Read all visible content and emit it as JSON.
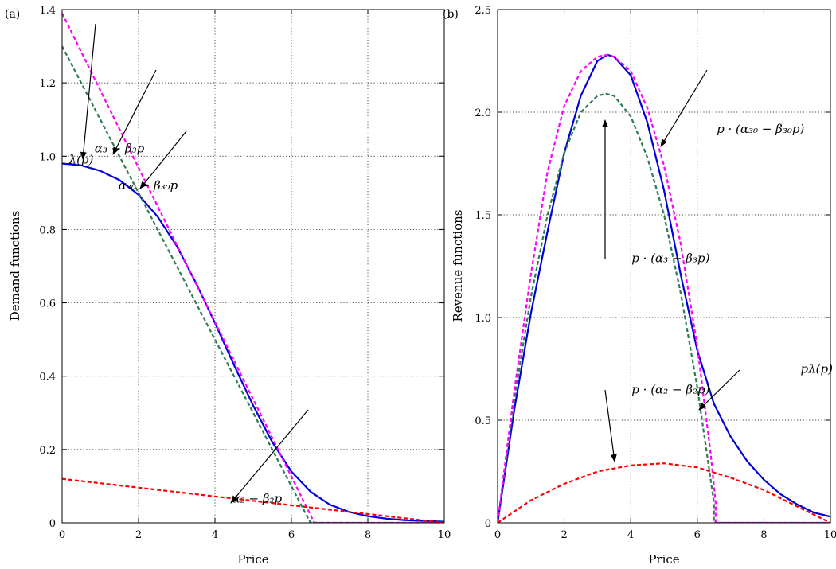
{
  "figure": {
    "panels": [
      {
        "label": "(a)"
      },
      {
        "label": "(b)"
      }
    ]
  },
  "chart_data": [
    {
      "type": "line",
      "panel_label": "(a)",
      "xlabel": "Price",
      "ylabel": "Demand functions",
      "xlim": [
        0,
        10
      ],
      "ylim": [
        0,
        1.4
      ],
      "xticks": [
        0,
        2,
        4,
        6,
        8,
        10
      ],
      "yticks": [
        0,
        0.2,
        0.4,
        0.6,
        0.8,
        1.0,
        1.2,
        1.4
      ],
      "xtick_labels": [
        "0",
        "2",
        "4",
        "6",
        "8",
        "10"
      ],
      "ytick_labels": [
        "0",
        "0.2",
        "0.4",
        "0.6",
        "0.8",
        "1.0",
        "1.2",
        "1.4"
      ],
      "grid": true,
      "series": [
        {
          "name": "λ(p)",
          "color": "#0000dd",
          "style": "solid",
          "x": [
            0,
            0.5,
            1,
            1.5,
            2,
            2.5,
            3,
            3.5,
            4,
            4.5,
            5,
            5.5,
            6,
            6.5,
            7,
            7.5,
            8,
            8.5,
            9,
            9.5,
            10
          ],
          "y": [
            0.98,
            0.975,
            0.96,
            0.935,
            0.895,
            0.835,
            0.755,
            0.655,
            0.545,
            0.43,
            0.32,
            0.22,
            0.14,
            0.085,
            0.05,
            0.03,
            0.018,
            0.011,
            0.007,
            0.005,
            0.003
          ]
        },
        {
          "name": "α₃ − β₃p",
          "color": "#2e7d4f",
          "style": "dashed",
          "x": [
            0,
            6.5,
            6.5,
            10
          ],
          "y": [
            1.3,
            0,
            0,
            0
          ]
        },
        {
          "name": "α₃₀ − β₃₀p",
          "color": "#ff00ff",
          "style": "dashed",
          "x": [
            0,
            6.6,
            6.6,
            10
          ],
          "y": [
            1.39,
            0,
            0,
            0
          ]
        },
        {
          "name": "α₂ − β₂p",
          "color": "#ff0000",
          "style": "dashed",
          "x": [
            0,
            10
          ],
          "y": [
            0.12,
            0
          ]
        }
      ],
      "annotations": [
        {
          "text": "λ(p)",
          "x": 0.5,
          "y": 0.98
        },
        {
          "text": "α₃ − β₃p",
          "x": 1.5,
          "y": 1.01
        },
        {
          "text": "α₃₀ − β₃₀p",
          "x": 2.25,
          "y": 0.91
        },
        {
          "text": "α₂ − β₂p",
          "x": 5.1,
          "y": 0.055
        }
      ]
    },
    {
      "type": "line",
      "panel_label": "(b)",
      "xlabel": "Price",
      "ylabel": "Revenue functions",
      "xlim": [
        0,
        10
      ],
      "ylim": [
        0,
        2.5
      ],
      "xticks": [
        0,
        2,
        4,
        6,
        8,
        10
      ],
      "yticks": [
        0,
        0.5,
        1.0,
        1.5,
        2.0,
        2.5
      ],
      "xtick_labels": [
        "0",
        "2",
        "4",
        "6",
        "8",
        "10"
      ],
      "ytick_labels": [
        "0",
        "0.5",
        "1.0",
        "1.5",
        "2.0",
        "2.5"
      ],
      "grid": true,
      "series": [
        {
          "name": "pλ(p)",
          "color": "#0000dd",
          "style": "solid",
          "x": [
            0,
            0.5,
            1,
            1.5,
            2,
            2.5,
            3,
            3.3,
            3.5,
            4,
            4.5,
            5,
            5.5,
            6,
            6.5,
            7,
            7.5,
            8,
            8.5,
            9,
            9.5,
            10
          ],
          "y": [
            0,
            0.55,
            1.02,
            1.42,
            1.8,
            2.08,
            2.25,
            2.28,
            2.27,
            2.18,
            1.95,
            1.62,
            1.21,
            0.84,
            0.58,
            0.42,
            0.3,
            0.21,
            0.14,
            0.09,
            0.05,
            0.03
          ]
        },
        {
          "name": "p·(α₃ − β₃p)",
          "color": "#2e7d4f",
          "style": "dashed",
          "x": [
            0,
            0.5,
            1,
            1.5,
            2,
            2.5,
            3,
            3.25,
            3.5,
            4,
            4.5,
            5,
            5.5,
            6,
            6.5,
            6.5,
            10
          ],
          "y": [
            0,
            0.6,
            1.1,
            1.5,
            1.8,
            2.0,
            2.08,
            2.09,
            2.08,
            1.98,
            1.78,
            1.5,
            1.12,
            0.66,
            0.1,
            0,
            0
          ]
        },
        {
          "name": "p·(α₃₀ − β₃₀p)",
          "color": "#ff00ff",
          "style": "dashed",
          "x": [
            0,
            0.5,
            1,
            1.5,
            2,
            2.5,
            3,
            3.3,
            3.5,
            4,
            4.5,
            5,
            5.5,
            6,
            6.4,
            6.55,
            6.55,
            10
          ],
          "y": [
            0,
            0.64,
            1.21,
            1.71,
            2.03,
            2.2,
            2.27,
            2.28,
            2.27,
            2.2,
            2.02,
            1.74,
            1.36,
            0.86,
            0.34,
            0.1,
            0,
            0
          ]
        },
        {
          "name": "p·(α₂ − β₂p)",
          "color": "#ff0000",
          "style": "dashed",
          "x": [
            0,
            1,
            2,
            3,
            4,
            5,
            6,
            7,
            8,
            8.5,
            9,
            9.5,
            10
          ],
          "y": [
            0,
            0.11,
            0.19,
            0.25,
            0.28,
            0.29,
            0.27,
            0.22,
            0.16,
            0.12,
            0.08,
            0.04,
            0
          ]
        }
      ],
      "annotations": [
        {
          "text": "p · (α₃₀ − β₃₀p)",
          "x": 7.9,
          "y": 1.9
        },
        {
          "text": "p · (α₃ − β₃p)",
          "x": 5.2,
          "y": 1.27
        },
        {
          "text": "pλ(p)",
          "x": 11.0,
          "y": 0.73
        },
        {
          "text": "p · (α₂ − β₂p)",
          "x": 5.2,
          "y": 0.63
        }
      ]
    }
  ]
}
